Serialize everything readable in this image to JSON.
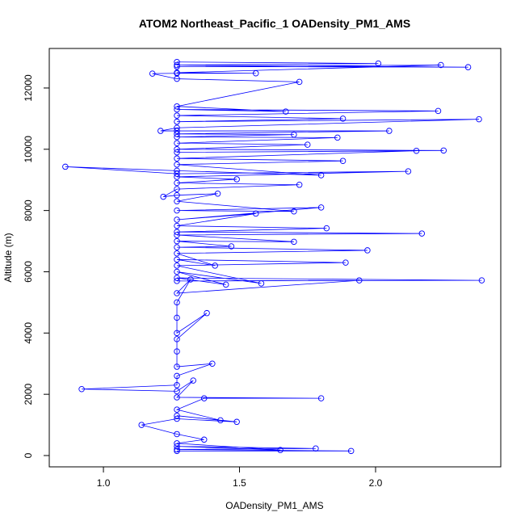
{
  "chart_data": {
    "type": "line",
    "title": "ATOM2 Northeast_Pacific_1 OADensity_PM1_AMS",
    "x_label": "OADensity_PM1_AMS",
    "y_label": "Altitude (m)",
    "color": "#0000ff",
    "marker": "circle",
    "xlim": [
      0.801,
      2.46
    ],
    "ylim": [
      -369,
      13291
    ],
    "xticks": [
      {
        "value": 1,
        "label": "1.0"
      },
      1.5,
      {
        "value": 2,
        "label": "2.0"
      }
    ],
    "yticks": [
      0,
      2000,
      4000,
      6000,
      8000,
      10000,
      12000
    ],
    "x": [
      1.27,
      1.91,
      1.27,
      1.78,
      1.27,
      1.65,
      1.27,
      1.37,
      1.27,
      1.14,
      1.27,
      1.49,
      1.27,
      1.43,
      1.27,
      1.37,
      1.8,
      1.27,
      1.33,
      1.27,
      0.92,
      1.27,
      1.27,
      1.4,
      1.27,
      1.27,
      1.27,
      1.38,
      1.27,
      1.27,
      1.27,
      1.32,
      1.27,
      1.94,
      1.27,
      2.39,
      1.27,
      1.45,
      1.27,
      1.58,
      1.27,
      1.89,
      1.27,
      1.41,
      1.27,
      1.97,
      1.27,
      1.47,
      1.27,
      1.7,
      1.27,
      2.17,
      1.27,
      1.82,
      1.27,
      1.56,
      1.27,
      1.8,
      1.27,
      1.7,
      1.27,
      1.42,
      1.27,
      1.22,
      1.27,
      1.72,
      1.27,
      1.49,
      1.27,
      2.12,
      1.27,
      0.86,
      1.27,
      1.8,
      1.27,
      1.88,
      1.27,
      2.15,
      1.27,
      2.25,
      1.27,
      1.75,
      1.27,
      1.86,
      1.27,
      1.7,
      1.27,
      2.05,
      1.27,
      1.21,
      1.27,
      2.38,
      1.27,
      1.88,
      1.27,
      2.23,
      1.27,
      1.67,
      1.27,
      1.72,
      1.27,
      1.18,
      1.27,
      1.56,
      1.27,
      2.24,
      1.27,
      2.34,
      1.27,
      2.01,
      1.27
    ],
    "values": [
      150,
      150,
      200,
      230,
      300,
      180,
      400,
      520,
      700,
      1000,
      1200,
      1100,
      1300,
      1150,
      1500,
      1870,
      1870,
      1900,
      2450,
      2100,
      2170,
      2300,
      2600,
      3000,
      2900,
      3400,
      3800,
      4650,
      4000,
      4500,
      5000,
      5750,
      5300,
      5720,
      5700,
      5720,
      5800,
      5580,
      6000,
      5620,
      6200,
      6300,
      6400,
      6200,
      6600,
      6700,
      6800,
      6830,
      7000,
      6980,
      7200,
      7250,
      7300,
      7420,
      7500,
      7900,
      7700,
      8100,
      8000,
      7970,
      8300,
      8550,
      8500,
      8450,
      8700,
      8840,
      8900,
      9020,
      9100,
      9280,
      9200,
      9430,
      9300,
      9150,
      9500,
      9620,
      9700,
      9950,
      9900,
      9960,
      10000,
      10150,
      10200,
      10380,
      10400,
      10480,
      10500,
      10600,
      10600,
      10600,
      10700,
      10980,
      10900,
      11000,
      11100,
      11250,
      11300,
      11230,
      11400,
      12200,
      12300,
      12470,
      12480,
      12480,
      12500,
      12750,
      12700,
      12680,
      12750,
      12800,
      12850
    ]
  }
}
